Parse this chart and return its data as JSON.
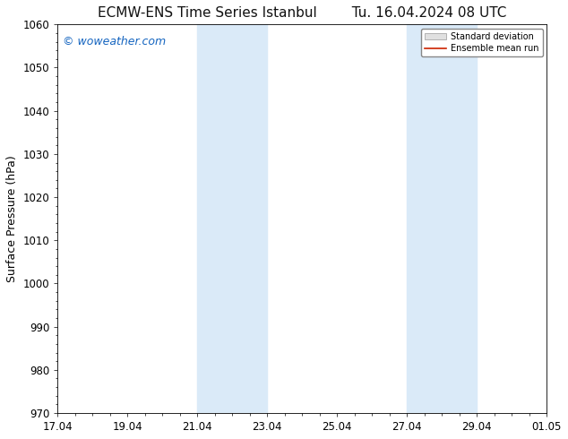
{
  "title": "ECMW-ENS Time Series Istanbul",
  "title2": "Tu. 16.04.2024 08 UTC",
  "ylabel": "Surface Pressure (hPa)",
  "ylim": [
    970,
    1060
  ],
  "yticks": [
    970,
    980,
    990,
    1000,
    1010,
    1020,
    1030,
    1040,
    1050,
    1060
  ],
  "xtick_labels": [
    "17.04",
    "19.04",
    "21.04",
    "23.04",
    "25.04",
    "27.04",
    "29.04",
    "01.05"
  ],
  "xtick_positions": [
    0,
    2,
    4,
    6,
    8,
    10,
    12,
    14
  ],
  "bg_color": "#ffffff",
  "plot_bg_color": "#ffffff",
  "shaded_regions": [
    {
      "x_start": 4,
      "x_end": 6,
      "color": "#daeaf8"
    },
    {
      "x_start": 10,
      "x_end": 12,
      "color": "#daeaf8"
    }
  ],
  "watermark_text": "© woweather.com",
  "watermark_color": "#1565C0",
  "legend_std_color": "#cccccc",
  "legend_mean_color": "#cc2200",
  "spine_color": "#000000",
  "tick_color": "#000000",
  "title_fontsize": 11,
  "axis_label_fontsize": 9,
  "tick_fontsize": 8.5,
  "watermark_fontsize": 9
}
